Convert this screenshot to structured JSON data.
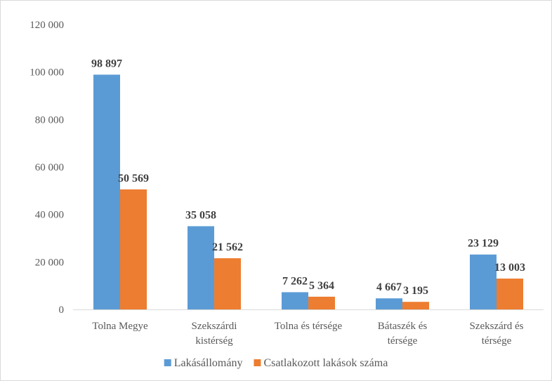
{
  "chart_data": {
    "type": "bar",
    "categories": [
      [
        "Tolna Megye"
      ],
      [
        "Szekszárdi",
        "kistérség"
      ],
      [
        "Tolna és térsége"
      ],
      [
        "Bátaszék és",
        "térsége"
      ],
      [
        "Szekszárd és",
        "térsége"
      ]
    ],
    "series": [
      {
        "name": "Lakásállomány",
        "color": "#5b9bd5",
        "values": [
          98897,
          35058,
          7262,
          4667,
          23129
        ],
        "labels": [
          "98 897",
          "35 058",
          "7 262",
          "4 667",
          "23 129"
        ]
      },
      {
        "name": "Csatlakozott lakások száma",
        "color": "#ed7d31",
        "values": [
          50569,
          21562,
          5364,
          3195,
          13003
        ],
        "labels": [
          "50 569",
          "21 562",
          "5 364",
          "3 195",
          "13 003"
        ]
      }
    ],
    "ylim": [
      0,
      120000
    ],
    "yticks": [
      0,
      20000,
      40000,
      60000,
      80000,
      100000,
      120000
    ],
    "ytick_labels": [
      "0",
      "20 000",
      "40 000",
      "60 000",
      "80 000",
      "100 000",
      "120 000"
    ],
    "grid": false,
    "legend_position": "bottom",
    "title": "",
    "xlabel": "",
    "ylabel": ""
  }
}
